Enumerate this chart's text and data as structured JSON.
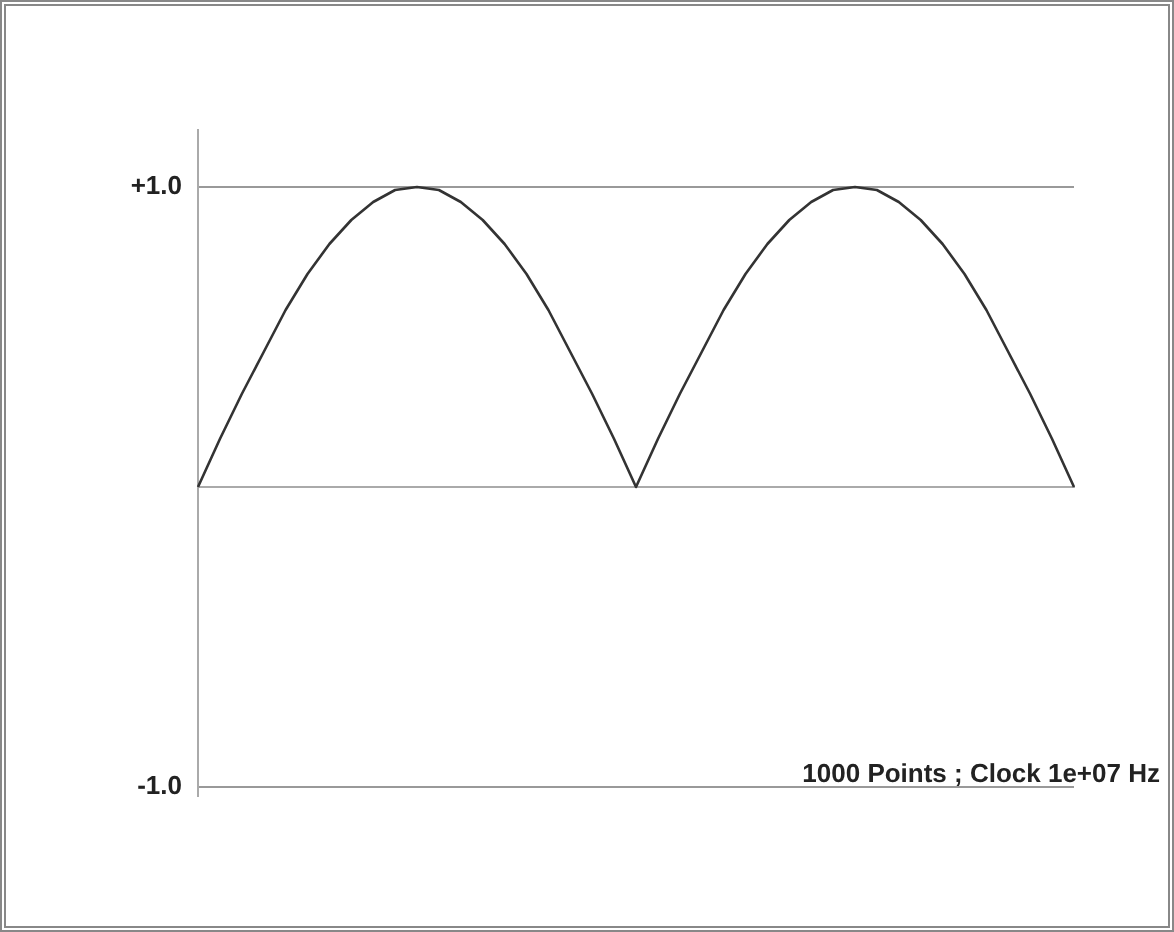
{
  "chart_data": {
    "type": "line",
    "categories": [
      null,
      null,
      null,
      null,
      null,
      null,
      null,
      null,
      null,
      null,
      null,
      null,
      null,
      null,
      null,
      null,
      null,
      null,
      null,
      null,
      null,
      null,
      null,
      null,
      null,
      null,
      null,
      null,
      null,
      null,
      null,
      null,
      null,
      null,
      null,
      null,
      null,
      null,
      null,
      null,
      null
    ],
    "series": [
      {
        "color": "#333333",
        "values": [
          0,
          0.16,
          0.31,
          0.45,
          0.59,
          0.71,
          0.81,
          0.89,
          0.95,
          0.99,
          1.0,
          0.99,
          0.95,
          0.89,
          0.81,
          0.71,
          0.59,
          0.45,
          0.31,
          0.16,
          0,
          0.16,
          0.31,
          0.45,
          0.59,
          0.71,
          0.81,
          0.89,
          0.95,
          0.99,
          1.0,
          0.99,
          0.95,
          0.89,
          0.81,
          0.71,
          0.59,
          0.45,
          0.31,
          0.16,
          0
        ]
      }
    ],
    "ylim": [
      -1.03,
      1.19
    ],
    "yticks": [
      {
        "value": 1,
        "label": "+1.0"
      },
      {
        "value": -1,
        "label": "-1.0"
      }
    ],
    "grid": "y",
    "legend": false,
    "marker": "none",
    "line_style": "solid",
    "tick_labels": "y",
    "annotations": [
      "1000 Points ; Clock 1e+07 Hz"
    ]
  }
}
